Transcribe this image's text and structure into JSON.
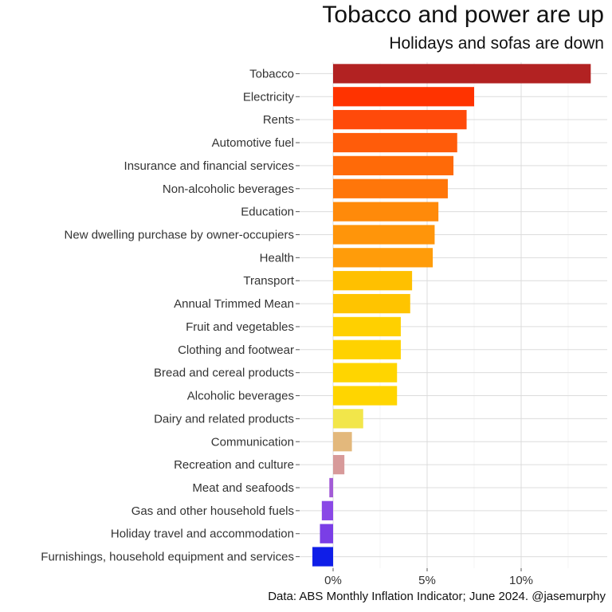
{
  "chart_data": {
    "type": "bar",
    "orientation": "horizontal",
    "title": "Tobacco and power are up",
    "subtitle": "Holidays and sofas are down",
    "caption": "Data: ABS Monthly Inflation Indicator; June 2024. @jasemurphy",
    "xlabel": "",
    "ylabel": "",
    "x_tick_labels": [
      "0%",
      "5%",
      "10%"
    ],
    "x_ticks": [
      0,
      5,
      10
    ],
    "xlim": [
      -1.1,
      14
    ],
    "grid": true,
    "legend": "none",
    "categories": [
      "Tobacco",
      "Electricity",
      "Rents",
      "Automotive fuel",
      "Insurance and financial services",
      "Non-alcoholic beverages",
      "Education",
      "New dwelling purchase by owner-occupiers",
      "Health",
      "Transport",
      "Annual Trimmed Mean",
      "Fruit and vegetables",
      "Clothing and footwear",
      "Bread and cereal products",
      "Alcoholic beverages",
      "Dairy and related products",
      "Communication",
      "Recreation and culture",
      "Meat and seafoods",
      "Gas and other household fuels",
      "Holiday travel and accommodation",
      "Furnishings, household equipment and services"
    ],
    "values": [
      13.7,
      7.5,
      7.1,
      6.6,
      6.4,
      6.1,
      5.6,
      5.4,
      5.3,
      4.2,
      4.1,
      3.6,
      3.6,
      3.4,
      3.4,
      1.6,
      1.0,
      0.6,
      -0.2,
      -0.6,
      -0.7,
      -1.1
    ],
    "colors": [
      "#b22222",
      "#ff3300",
      "#ff4a0a",
      "#ff5c0a",
      "#ff6a08",
      "#ff760a",
      "#ff8a0a",
      "#ff950a",
      "#ff9c0a",
      "#ffc000",
      "#ffc400",
      "#ffd000",
      "#ffd200",
      "#ffd500",
      "#ffd500",
      "#f2e64a",
      "#e3b87c",
      "#d79a9a",
      "#a25bd6",
      "#8a48e6",
      "#7a3ee6",
      "#0f1ee8"
    ]
  }
}
